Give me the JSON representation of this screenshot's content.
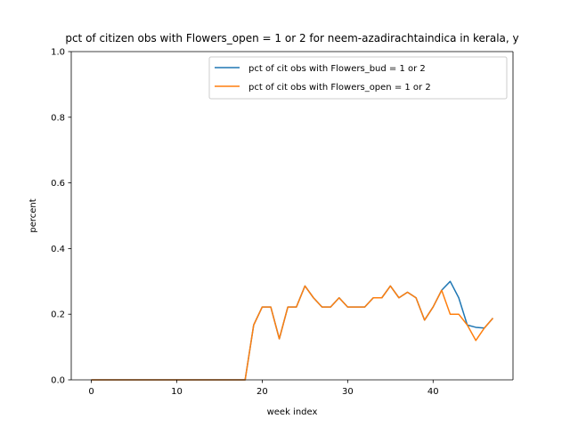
{
  "chart_data": {
    "type": "line",
    "title": "pct of citizen obs with Flowers_open = 1 or 2 for neem-azadirachtaindica in kerala, y",
    "xlabel": "week index",
    "ylabel": "percent",
    "xlim": [
      -2.35,
      49.35
    ],
    "ylim": [
      0,
      1.0
    ],
    "xticks": [
      0,
      10,
      20,
      30,
      40
    ],
    "yticks": [
      0.0,
      0.2,
      0.4,
      0.6,
      0.8,
      1.0
    ],
    "xtick_labels": [
      "0",
      "10",
      "20",
      "30",
      "40"
    ],
    "ytick_labels": [
      "0.0",
      "0.2",
      "0.4",
      "0.6",
      "0.8",
      "1.0"
    ],
    "grid": false,
    "legend_position": "top-right",
    "series": [
      {
        "name": "pct of cit obs with Flowers_bud = 1 or 2",
        "color": "#1f77b4",
        "x": [
          0,
          1,
          2,
          3,
          4,
          5,
          6,
          7,
          8,
          9,
          10,
          11,
          12,
          13,
          14,
          15,
          16,
          17,
          18,
          19,
          20,
          21,
          22,
          23,
          24,
          25,
          26,
          27,
          28,
          29,
          30,
          31,
          32,
          33,
          34,
          35,
          36,
          37,
          38,
          39,
          40,
          41,
          42,
          43,
          44,
          45,
          46,
          47
        ],
        "values": [
          0,
          0,
          0,
          0,
          0,
          0,
          0,
          0,
          0,
          0,
          0,
          0,
          0,
          0,
          0,
          0,
          0,
          0,
          0,
          0.167,
          0.222,
          0.222,
          0.125,
          0.222,
          0.222,
          0.286,
          0.25,
          0.222,
          0.222,
          0.25,
          0.222,
          0.222,
          0.222,
          0.25,
          0.25,
          0.286,
          0.25,
          0.267,
          0.25,
          0.182,
          0.222,
          0.273,
          0.3,
          0.25,
          0.167,
          0.16,
          0.158,
          0.188
        ]
      },
      {
        "name": "pct of cit obs with Flowers_open = 1 or 2",
        "color": "#ff7f0e",
        "x": [
          0,
          1,
          2,
          3,
          4,
          5,
          6,
          7,
          8,
          9,
          10,
          11,
          12,
          13,
          14,
          15,
          16,
          17,
          18,
          19,
          20,
          21,
          22,
          23,
          24,
          25,
          26,
          27,
          28,
          29,
          30,
          31,
          32,
          33,
          34,
          35,
          36,
          37,
          38,
          39,
          40,
          41,
          42,
          43,
          44,
          45,
          46,
          47
        ],
        "values": [
          0,
          0,
          0,
          0,
          0,
          0,
          0,
          0,
          0,
          0,
          0,
          0,
          0,
          0,
          0,
          0,
          0,
          0,
          0,
          0.167,
          0.222,
          0.222,
          0.125,
          0.222,
          0.222,
          0.286,
          0.25,
          0.222,
          0.222,
          0.25,
          0.222,
          0.222,
          0.222,
          0.25,
          0.25,
          0.286,
          0.25,
          0.267,
          0.25,
          0.182,
          0.222,
          0.273,
          0.2,
          0.2,
          0.167,
          0.12,
          0.158,
          0.188
        ]
      }
    ]
  }
}
